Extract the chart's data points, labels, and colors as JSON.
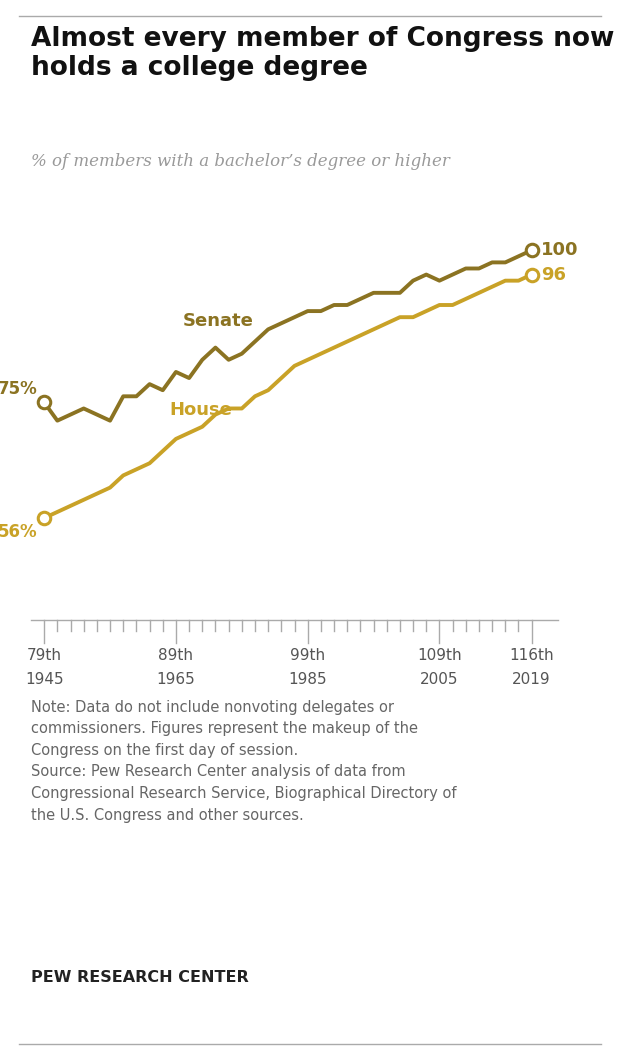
{
  "title": "Almost every member of Congress now\nholds a college degree",
  "subtitle": "% of members with a bachelor’s degree or higher",
  "senate_color": "#8B7322",
  "house_color": "#C9A227",
  "background_color": "#FFFFFF",
  "note": "Note: Data do not include nonvoting delegates or\ncommissioners. Figures represent the makeup of the\nCongress on the first day of session.\nSource: Pew Research Center analysis of data from\nCongressional Research Service, Biographical Directory of\nthe U.S. Congress and other sources.",
  "footer": "PEW RESEARCH CENTER",
  "x_tick_labels": [
    [
      "79th",
      "1945"
    ],
    [
      "89th",
      "1965"
    ],
    [
      "99th",
      "1985"
    ],
    [
      "109th",
      "2005"
    ],
    [
      "116th",
      "2019"
    ]
  ],
  "x_tick_positions": [
    79,
    89,
    99,
    109,
    116
  ],
  "senate_data": [
    [
      79,
      75
    ],
    [
      80,
      72
    ],
    [
      81,
      73
    ],
    [
      82,
      74
    ],
    [
      83,
      73
    ],
    [
      84,
      72
    ],
    [
      85,
      76
    ],
    [
      86,
      76
    ],
    [
      87,
      78
    ],
    [
      88,
      77
    ],
    [
      89,
      80
    ],
    [
      90,
      79
    ],
    [
      91,
      82
    ],
    [
      92,
      84
    ],
    [
      93,
      82
    ],
    [
      94,
      83
    ],
    [
      95,
      85
    ],
    [
      96,
      87
    ],
    [
      97,
      88
    ],
    [
      98,
      89
    ],
    [
      99,
      90
    ],
    [
      100,
      90
    ],
    [
      101,
      91
    ],
    [
      102,
      91
    ],
    [
      103,
      92
    ],
    [
      104,
      93
    ],
    [
      105,
      93
    ],
    [
      106,
      93
    ],
    [
      107,
      95
    ],
    [
      108,
      96
    ],
    [
      109,
      95
    ],
    [
      110,
      96
    ],
    [
      111,
      97
    ],
    [
      112,
      97
    ],
    [
      113,
      98
    ],
    [
      114,
      98
    ],
    [
      115,
      99
    ],
    [
      116,
      100
    ]
  ],
  "house_data": [
    [
      79,
      56
    ],
    [
      80,
      57
    ],
    [
      81,
      58
    ],
    [
      82,
      59
    ],
    [
      83,
      60
    ],
    [
      84,
      61
    ],
    [
      85,
      63
    ],
    [
      86,
      64
    ],
    [
      87,
      65
    ],
    [
      88,
      67
    ],
    [
      89,
      69
    ],
    [
      90,
      70
    ],
    [
      91,
      71
    ],
    [
      92,
      73
    ],
    [
      93,
      74
    ],
    [
      94,
      74
    ],
    [
      95,
      76
    ],
    [
      96,
      77
    ],
    [
      97,
      79
    ],
    [
      98,
      81
    ],
    [
      99,
      82
    ],
    [
      100,
      83
    ],
    [
      101,
      84
    ],
    [
      102,
      85
    ],
    [
      103,
      86
    ],
    [
      104,
      87
    ],
    [
      105,
      88
    ],
    [
      106,
      89
    ],
    [
      107,
      89
    ],
    [
      108,
      90
    ],
    [
      109,
      91
    ],
    [
      110,
      91
    ],
    [
      111,
      92
    ],
    [
      112,
      93
    ],
    [
      113,
      94
    ],
    [
      114,
      95
    ],
    [
      115,
      95
    ],
    [
      116,
      96
    ]
  ],
  "ylim": [
    40,
    110
  ],
  "xlim": [
    78,
    118
  ],
  "figsize": [
    6.2,
    10.52
  ],
  "dpi": 100
}
